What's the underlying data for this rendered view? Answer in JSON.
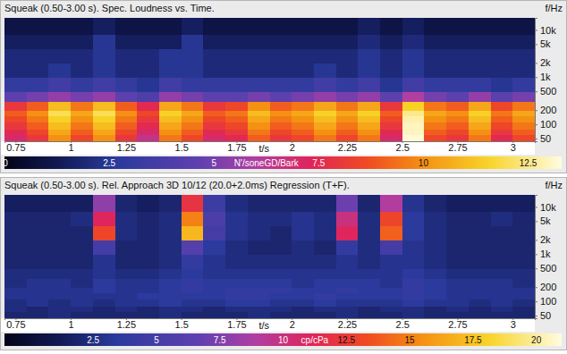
{
  "chart_data": [
    {
      "type": "heatmap",
      "title": "Squeak (0.50-3.00 s). Spec. Loudness vs. Time.",
      "x_label": "t/s",
      "y_label": "f/Hz",
      "log": "y",
      "xlim": [
        0.7,
        3.1
      ],
      "ylim": [
        44,
        18000
      ],
      "xticks": [
        0.75,
        1,
        1.25,
        1.5,
        1.75,
        2,
        2.25,
        2.5,
        2.75,
        3
      ],
      "yticks": [
        50,
        100,
        200,
        500,
        {
          "value": 1000,
          "label": "1k"
        },
        {
          "value": 2000,
          "label": "2k"
        },
        {
          "value": 5000,
          "label": "5k"
        },
        {
          "value": 10000,
          "label": "10k"
        }
      ],
      "x_bins": [
        0.7,
        0.8,
        0.9,
        1,
        1.1,
        1.2,
        1.3,
        1.4,
        1.5,
        1.6,
        1.7,
        1.8,
        1.9,
        2,
        2.1,
        2.2,
        2.3,
        2.4,
        2.5,
        2.6,
        2.7,
        2.8,
        2.9,
        3,
        3.1
      ],
      "y_bins": [
        44,
        60,
        80,
        110,
        150,
        200,
        300,
        500,
        1000,
        2000,
        4000,
        8000,
        18000
      ],
      "z": [
        [
          7,
          8,
          10,
          8.5,
          10,
          8,
          6.5,
          9.5,
          8.5,
          7,
          7.5,
          9,
          8,
          8.5,
          9.5,
          8.5,
          9.5,
          7,
          13.2,
          8.5,
          8,
          9.5,
          7.5,
          8.5
        ],
        [
          7.5,
          8.5,
          10.5,
          9,
          10.5,
          8.5,
          7,
          10,
          9,
          7.5,
          8,
          9.5,
          8.5,
          9,
          10,
          9,
          10,
          7.5,
          13,
          9,
          8.5,
          10,
          8,
          9
        ],
        [
          8,
          9,
          11,
          9.5,
          11,
          9,
          7.5,
          10.5,
          9.5,
          8,
          8.5,
          10,
          9,
          9.5,
          10.5,
          9.5,
          10.5,
          8,
          13,
          9.5,
          9,
          10.5,
          8.5,
          9.5
        ],
        [
          8.5,
          9.5,
          11.5,
          10,
          11.5,
          9.5,
          8,
          11,
          10,
          8.5,
          9,
          10.5,
          9.5,
          10,
          11,
          10,
          11,
          8.5,
          12.8,
          10,
          9.5,
          11,
          9,
          10
        ],
        [
          9,
          10,
          12,
          10.5,
          12,
          10,
          8.5,
          11.5,
          10.5,
          9,
          9.5,
          11,
          10,
          10.5,
          11.5,
          10.5,
          11.5,
          9,
          12.5,
          10.5,
          10,
          11.5,
          9.5,
          10.5
        ],
        [
          8,
          9,
          11,
          9.5,
          11,
          9,
          7.5,
          10.5,
          9.5,
          8,
          8.5,
          10,
          9,
          9.5,
          10.5,
          9.5,
          10.5,
          8,
          11.5,
          9.5,
          9,
          10.5,
          8.5,
          9.5
        ],
        [
          4.5,
          5,
          5.5,
          5,
          5.5,
          4.5,
          4,
          5.5,
          5,
          4.5,
          4.5,
          5,
          4.5,
          5,
          5.5,
          5,
          5.5,
          4.5,
          6,
          5,
          4.5,
          5.5,
          4.5,
          5
        ],
        [
          3,
          3,
          3.5,
          3,
          3.5,
          3,
          2.5,
          3.5,
          3,
          3,
          3,
          3,
          3,
          3,
          3.5,
          3,
          3.5,
          2.5,
          3.5,
          3,
          3,
          3,
          2.5,
          3
        ],
        [
          2,
          2,
          2.5,
          2,
          2.5,
          2,
          2,
          2.5,
          2.5,
          2,
          2,
          2,
          2,
          2,
          2.5,
          2,
          2.5,
          2,
          2.5,
          2,
          2,
          2,
          2,
          2
        ],
        [
          2,
          2,
          2,
          2,
          2.5,
          2,
          2,
          2.5,
          2.5,
          2,
          2,
          2,
          2,
          2,
          2,
          2,
          2.5,
          2,
          2.5,
          2,
          2,
          2,
          2,
          2
        ],
        [
          1.5,
          1.5,
          1.5,
          1.5,
          2.5,
          1.5,
          1.5,
          1.5,
          2.5,
          1.5,
          1.5,
          1.5,
          1.5,
          1.5,
          1.5,
          1.5,
          2,
          1.5,
          2,
          1.5,
          1.5,
          1.5,
          1.5,
          1.5
        ],
        [
          1,
          1,
          1,
          1,
          1.5,
          1,
          1,
          1,
          1.5,
          1,
          1,
          1,
          1,
          1,
          1,
          1,
          1.5,
          1,
          1.5,
          1,
          1,
          1,
          1,
          1
        ]
      ],
      "colorbar": {
        "range": [
          0,
          13.3
        ],
        "ticks": [
          0,
          2.5,
          5,
          7.5,
          10,
          12.5
        ],
        "label": "N'/soneGD/Bark"
      }
    },
    {
      "type": "heatmap",
      "title": "Squeak (0.50-3.00 s). Rel. Approach 3D 10/12 (20.0+2.0ms) Regression (T+F).",
      "x_label": "t/s",
      "y_label": "f/Hz",
      "log": "y",
      "xlim": [
        0.7,
        3.1
      ],
      "ylim": [
        44,
        18000
      ],
      "xticks": [
        0.75,
        1,
        1.25,
        1.5,
        1.75,
        2,
        2.25,
        2.5,
        2.75,
        3
      ],
      "yticks": [
        50,
        100,
        200,
        500,
        {
          "value": 1000,
          "label": "1k"
        },
        {
          "value": 2000,
          "label": "2k"
        },
        {
          "value": 5000,
          "label": "5k"
        },
        {
          "value": 10000,
          "label": "10k"
        }
      ],
      "x_bins": [
        0.7,
        0.8,
        0.9,
        1,
        1.1,
        1.2,
        1.3,
        1.4,
        1.5,
        1.6,
        1.7,
        1.8,
        1.9,
        2,
        2.1,
        2.2,
        2.3,
        2.4,
        2.5,
        2.6,
        2.7,
        2.8,
        2.9,
        3,
        3.1
      ],
      "y_bins": [
        44,
        60,
        80,
        110,
        150,
        200,
        300,
        500,
        1000,
        2000,
        4000,
        8000,
        18000
      ],
      "z": [
        [
          2,
          2,
          2.5,
          2,
          2,
          2,
          2,
          2.5,
          2,
          2,
          2,
          2.5,
          2,
          2,
          2,
          2.5,
          2,
          2,
          2.5,
          2,
          2,
          2,
          2,
          2
        ],
        [
          2.5,
          2,
          2.5,
          2.5,
          2,
          2.5,
          2,
          2.5,
          2.5,
          2,
          2.5,
          2.5,
          2.5,
          2,
          2.5,
          2.5,
          2,
          2.5,
          2.5,
          2,
          2.5,
          2,
          2.5,
          2
        ],
        [
          2.5,
          3,
          2.5,
          3,
          2.5,
          3,
          3,
          3.5,
          3,
          3,
          3.5,
          3.5,
          3,
          3,
          3.5,
          3,
          3,
          3,
          3.5,
          3,
          3,
          2.5,
          3,
          2.5
        ],
        [
          3,
          3,
          3,
          3,
          3,
          3,
          3.5,
          3.5,
          3.5,
          3.5,
          4,
          4,
          3.5,
          3.5,
          4,
          3.5,
          3.5,
          3.5,
          4,
          3.5,
          3,
          3,
          3,
          3
        ],
        [
          3,
          3,
          3,
          3,
          3.5,
          3,
          3,
          3.5,
          4,
          3.5,
          4,
          4,
          4,
          3.5,
          3.5,
          4,
          3.5,
          3.5,
          4,
          3.5,
          3,
          3,
          3,
          3
        ],
        [
          2.5,
          3,
          3,
          2.5,
          3.5,
          3,
          3,
          3.5,
          4,
          3.5,
          3.5,
          3.5,
          3.5,
          3,
          3.5,
          3.5,
          3.5,
          3,
          4,
          3.5,
          3,
          3,
          3,
          2.5
        ],
        [
          2.5,
          2.5,
          2.5,
          2.5,
          3,
          2.5,
          2.5,
          3,
          3.5,
          3,
          3,
          3,
          3,
          3,
          3,
          3,
          3,
          3,
          3.5,
          3,
          2.5,
          2.5,
          2.5,
          2.5
        ],
        [
          2,
          2,
          2,
          2,
          3,
          2,
          2,
          2.5,
          4,
          3,
          2.5,
          2.5,
          2.5,
          2.5,
          2.5,
          3,
          2.5,
          3,
          3,
          2.5,
          2,
          2,
          2,
          2
        ],
        [
          2,
          2,
          2,
          2,
          5,
          2,
          2,
          2.5,
          6,
          3.5,
          2.5,
          2,
          2,
          2.5,
          2,
          4,
          2.5,
          5,
          3,
          2.5,
          2,
          2,
          2,
          2
        ],
        [
          2,
          2,
          2,
          2,
          13,
          2.5,
          2,
          2.5,
          17,
          5,
          3,
          2.5,
          2,
          3,
          2.5,
          11,
          2.5,
          14,
          3.5,
          2.5,
          2,
          2,
          2,
          2
        ],
        [
          2,
          2,
          2,
          2.5,
          11,
          2.5,
          2,
          2.5,
          15,
          5.5,
          3,
          2.5,
          2.5,
          3,
          2.5,
          10,
          2.5,
          13,
          3.5,
          2.5,
          2,
          2,
          2.5,
          2
        ],
        [
          1.5,
          1.5,
          1.5,
          1.5,
          8,
          2,
          1.5,
          2,
          12,
          4.5,
          2.5,
          2,
          2,
          2,
          2,
          7,
          2,
          9,
          3,
          2,
          1.5,
          1.5,
          1.5,
          1.5
        ]
      ],
      "colorbar": {
        "range": [
          -1,
          21
        ],
        "ticks": [
          2.5,
          5,
          7.5,
          10,
          12.5,
          15,
          17.5,
          20
        ],
        "label": "cp/cPa"
      }
    }
  ]
}
